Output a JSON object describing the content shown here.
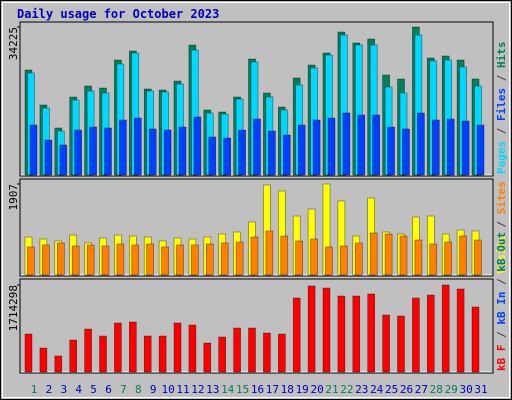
{
  "title": "Daily usage for October 2023",
  "legend_separator": " / ",
  "chart_data": [
    {
      "type": "bar",
      "ylim": [
        0,
        34225
      ],
      "yticks": [
        34225
      ],
      "series": [
        {
          "name": "Pages",
          "color": "#00d8ff",
          "values": [
            23588,
            15494,
            10175,
            17344,
            19425,
            18963,
            25669,
            28213,
            19425,
            19194,
            21044,
            28906,
            14338,
            14106,
            17575,
            26131,
            18038,
            15031,
            20813,
            24744,
            27750,
            32375,
            30063,
            30063,
            20350,
            18963,
            32375,
            26363,
            26594,
            24975,
            20581
          ]
        },
        {
          "name": "Files",
          "color": "#0040ff",
          "values": [
            11563,
            8094,
            6938,
            10406,
            11100,
            10869,
            12719,
            13181,
            10638,
            10406,
            11100,
            13413,
            8788,
            8556,
            10406,
            12950,
            10175,
            9250,
            11563,
            12719,
            13181,
            14338,
            13875,
            13875,
            11100,
            10638,
            14338,
            12719,
            12950,
            12488,
            11563
          ]
        },
        {
          "name": "Hits",
          "color": "#00805c",
          "values": [
            24281,
            16188,
            10869,
            18038,
            20581,
            20119,
            26594,
            28675,
            19888,
            19656,
            21738,
            30063,
            15031,
            14569,
            18038,
            26825,
            18963,
            15725,
            22431,
            25438,
            28213,
            33069,
            30525,
            31450,
            23125,
            22200,
            34225,
            27056,
            27519,
            26594,
            22200
          ]
        }
      ]
    },
    {
      "type": "bar",
      "ylim": [
        0,
        1907
      ],
      "yticks": [
        1907
      ],
      "series": [
        {
          "name": "Visits",
          "color": "#ffff00",
          "values": [
            796,
            754,
            713,
            838,
            671,
            775,
            838,
            817,
            796,
            713,
            775,
            754,
            796,
            859,
            901,
            1111,
            1886,
            1760,
            1236,
            1383,
            1907,
            1551,
            817,
            1614,
            901,
            859,
            1215,
            1236,
            859,
            943,
            922
          ]
        },
        {
          "name": "Sites",
          "color": "#ff8000",
          "values": [
            587,
            629,
            671,
            608,
            629,
            608,
            650,
            629,
            650,
            587,
            629,
            629,
            650,
            671,
            692,
            796,
            922,
            817,
            713,
            754,
            587,
            608,
            671,
            880,
            859,
            817,
            733,
            650,
            692,
            817,
            733
          ]
        }
      ]
    },
    {
      "type": "bar",
      "ylim": [
        0,
        1714298
      ],
      "yticks": [
        1714298
      ],
      "categories": [
        "1",
        "2",
        "3",
        "4",
        "5",
        "6",
        "7",
        "8",
        "9",
        "10",
        "11",
        "12",
        "13",
        "14",
        "15",
        "16",
        "17",
        "18",
        "19",
        "20",
        "21",
        "22",
        "23",
        "24",
        "25",
        "26",
        "27",
        "28",
        "29",
        "30",
        "31"
      ],
      "category_colors": [
        "#00805c",
        "#0000c0",
        "#0000c0",
        "#0000c0",
        "#0000c0",
        "#0000c0",
        "#00805c",
        "#00805c",
        "#0000c0",
        "#0000c0",
        "#0000c0",
        "#0000c0",
        "#0000c0",
        "#00805c",
        "#00805c",
        "#0000c0",
        "#0000c0",
        "#0000c0",
        "#0000c0",
        "#0000c0",
        "#00805c",
        "#00805c",
        "#0000c0",
        "#0000c0",
        "#0000c0",
        "#0000c0",
        "#0000c0",
        "#00805c",
        "#00805c",
        "#0000c0",
        "#0000c0"
      ],
      "series": [
        {
          "name": "kB F",
          "color": "#ff0000",
          "values": [
            748775,
            472910,
            315274,
            630547,
            847298,
            709366,
            965525,
            985230,
            709366,
            709366,
            965525,
            926116,
            571433,
            689661,
            867002,
            867002,
            768479,
            748775,
            1458140,
            1694596,
            1655186,
            1497550,
            1497550,
            1536959,
            1123162,
            1103458,
            1458140,
            1517254,
            1714298,
            1635482,
            1280799
          ]
        },
        {
          "name": "kB In",
          "color": "#0040ff",
          "values": [
            0,
            0,
            0,
            0,
            0,
            0,
            0,
            0,
            0,
            0,
            0,
            0,
            0,
            0,
            0,
            0,
            0,
            0,
            0,
            0,
            0,
            0,
            0,
            0,
            0,
            0,
            0,
            0,
            0,
            0,
            0
          ]
        },
        {
          "name": "kB Out",
          "color": "#00805c",
          "values": [
            0,
            0,
            0,
            0,
            0,
            0,
            0,
            0,
            0,
            0,
            0,
            0,
            0,
            0,
            0,
            0,
            0,
            0,
            0,
            0,
            0,
            0,
            0,
            0,
            0,
            0,
            0,
            0,
            0,
            0,
            0
          ]
        }
      ]
    }
  ]
}
